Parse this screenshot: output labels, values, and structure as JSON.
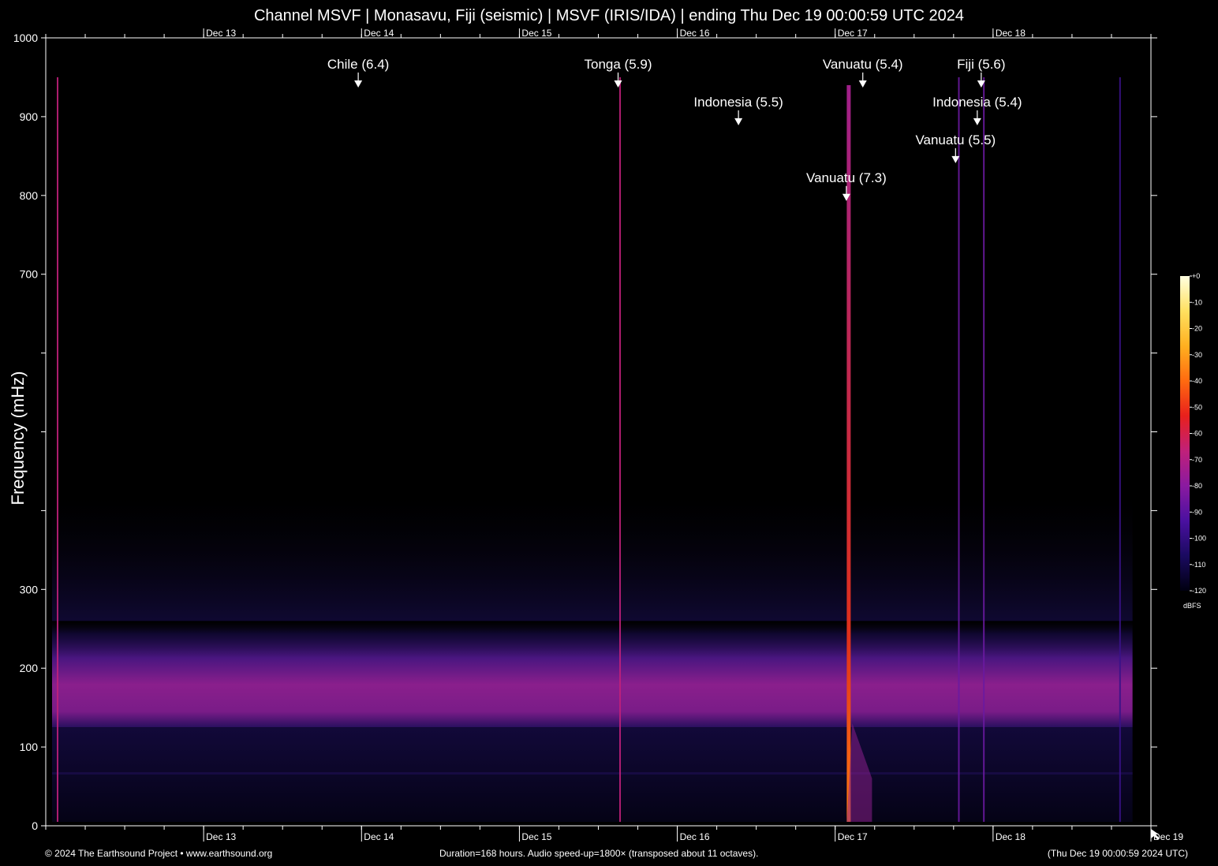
{
  "title": "Channel MSVF | Monasavu, Fiji (seismic) | MSVF (IRIS/IDA) | ending Thu Dec 19 00:00:59 UTC 2024",
  "footer": {
    "left": "© 2024 The Earthsound Project • www.earthsound.org",
    "center": "Duration=168 hours. Audio speed-up=1800× (transposed about 11 octaves).",
    "right": "(Thu Dec 19 00:00:59 2024 UTC)"
  },
  "chart_data": {
    "type": "heatmap",
    "ylabel": "Frequency (mHz)",
    "ylim": [
      0,
      1000
    ],
    "y_ticks": [
      0,
      100,
      200,
      300,
      400,
      500,
      600,
      700,
      800,
      900,
      1000
    ],
    "y_tick_labels": [
      "0",
      "100",
      "200",
      "300",
      "",
      "",
      "",
      "700",
      "800",
      "900",
      "1000"
    ],
    "xlim_hours": [
      0,
      168
    ],
    "x_ticks": [
      {
        "label": "Dec 13",
        "hour": 24
      },
      {
        "label": "Dec 14",
        "hour": 48
      },
      {
        "label": "Dec 15",
        "hour": 72
      },
      {
        "label": "Dec 16",
        "hour": 96
      },
      {
        "label": "Dec 17",
        "hour": 120
      },
      {
        "label": "Dec 18",
        "hour": 144
      },
      {
        "label": "Dec 19",
        "hour": 168
      }
    ],
    "top_x_labels": [
      "Dec 13",
      "Dec 14",
      "Dec 15",
      "Dec 16",
      "Dec 17",
      "Dec 18"
    ],
    "minor_tick_hours": 6,
    "colorbar": {
      "unit": "dBFS",
      "range": [
        -120,
        0
      ],
      "ticks": [
        "+0",
        "-10",
        "-20",
        "-30",
        "-40",
        "-50",
        "-60",
        "-70",
        "-80",
        "-90",
        "-100",
        "-110",
        "-120"
      ],
      "colors": [
        "#000010",
        "#1a0a60",
        "#4a10a0",
        "#8a1aa0",
        "#c0207a",
        "#e8201c",
        "#ff6a10",
        "#ffb020",
        "#ffe060",
        "#ffffe0"
      ]
    },
    "events": [
      {
        "label": "Chile (6.4)",
        "hour": 47.5,
        "arrow_freq": 940
      },
      {
        "label": "Tonga (5.9)",
        "hour": 87,
        "arrow_freq": 940
      },
      {
        "label": "Indonesia (5.5)",
        "hour": 105.3,
        "arrow_freq": 892
      },
      {
        "label": "Vanuatu (7.3)",
        "hour": 121.7,
        "arrow_freq": 796
      },
      {
        "label": "Vanuatu (5.4)",
        "hour": 124.2,
        "arrow_freq": 940
      },
      {
        "label": "Vanuatu (5.5)",
        "hour": 138.3,
        "arrow_freq": 844
      },
      {
        "label": "Indonesia (5.4)",
        "hour": 141.6,
        "arrow_freq": 892
      },
      {
        "label": "Fiji (5.6)",
        "hour": 142.2,
        "arrow_freq": 940
      }
    ],
    "noise_band": {
      "center_freq": 170,
      "low_freq": 125,
      "high_freq": 260,
      "level_dbfs": -85
    },
    "event_streaks": [
      {
        "hour": 1.8,
        "level_dbfs": -70
      },
      {
        "hour": 87.3,
        "level_dbfs": -65
      },
      {
        "hour": 122.0,
        "level_dbfs": -40
      },
      {
        "hour": 138.8,
        "level_dbfs": -80
      },
      {
        "hour": 142.6,
        "level_dbfs": -80
      },
      {
        "hour": 163.3,
        "level_dbfs": -95
      }
    ]
  }
}
